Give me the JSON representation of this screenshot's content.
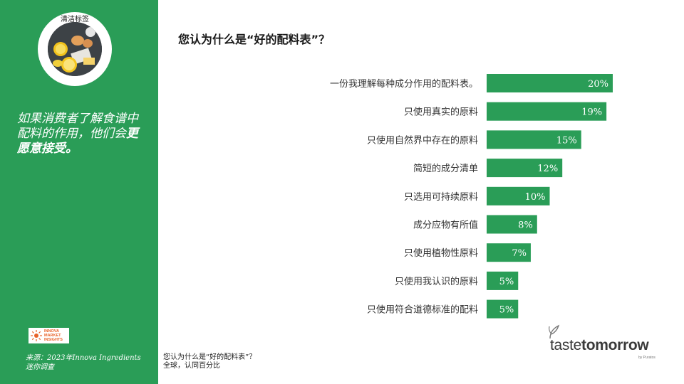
{
  "sidebar": {
    "badge_label": "清洁标签",
    "headline_part1": "如果消费者了解食谱中配料的作用，他们会",
    "headline_part2": "更愿意接受。",
    "innova_logo_text": [
      "INNOVA",
      "MARKET",
      "INSIGHTS"
    ],
    "source_line1": "来源：2023年Innova Ingredients",
    "source_line2": "迷你调查"
  },
  "title": "您认为什么是“好的配料表”？",
  "footnote": {
    "line1": "您认为什么是“好的配料表”？",
    "line2": "全球，认同百分比"
  },
  "brand": {
    "name_light": "taste",
    "name_bold": "tomorrow",
    "sub": "by Puratos"
  },
  "colors": {
    "sidebar": "#2a9d57",
    "bar": "#2a9d57",
    "bar_label": "#ffffff",
    "category_text": "#333333"
  },
  "chart_data": {
    "type": "bar",
    "orientation": "horizontal",
    "categories": [
      "一份我理解每种成分作用的配料表。",
      "只使用真实的原料",
      "只使用自然界中存在的原料",
      "简短的成分清单",
      "只选用可持续原料",
      "成分应物有所值",
      "只使用植物性原料",
      "只使用我认识的原料",
      "只使用符合道德标准的配料"
    ],
    "values": [
      20,
      19,
      15,
      12,
      10,
      8,
      7,
      5,
      5
    ],
    "value_labels": [
      "20%",
      "19%",
      "15%",
      "12%",
      "10%",
      "8%",
      "7%",
      "5%",
      "5%"
    ],
    "unit": "%",
    "xlim": [
      0,
      25
    ],
    "grid": false,
    "legend": "none"
  }
}
